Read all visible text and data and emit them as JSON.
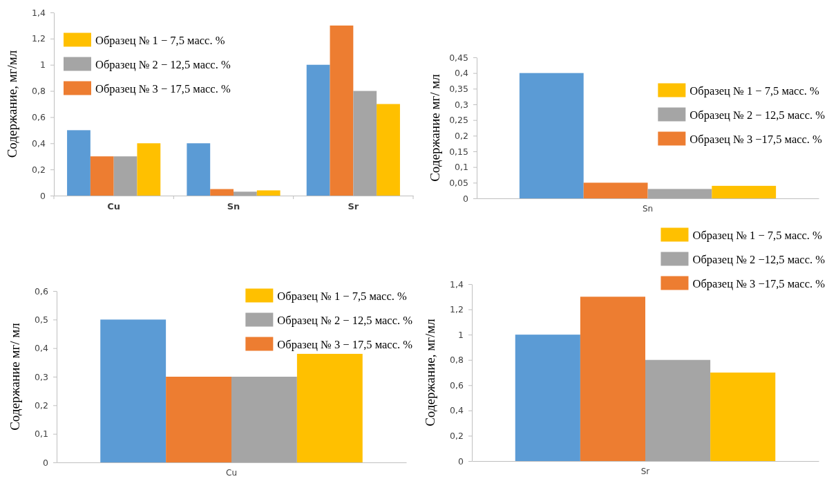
{
  "chart_data": [
    {
      "type": "bar",
      "ylabel": "Содержание, мг/мл",
      "categories": [
        "Cu",
        "Sn",
        "Sr"
      ],
      "ylim": [
        0,
        1.4
      ],
      "yticks": [
        {
          "value": 0,
          "label": "0"
        },
        {
          "value": 0.2,
          "label": "0,2"
        },
        {
          "value": 0.4,
          "label": "0,4"
        },
        {
          "value": 0.6,
          "label": "0,6"
        },
        {
          "value": 0.8,
          "label": "0,8"
        },
        {
          "value": 1,
          "label": "1"
        },
        {
          "value": 1.2,
          "label": "1,2"
        },
        {
          "value": 1.4,
          "label": "1,4"
        }
      ],
      "legend": "top left",
      "series": [
        {
          "color": "#5b9bd5",
          "values": [
            0.5,
            0.4,
            1.0
          ]
        },
        {
          "name": "Образец № 3 − 17,5 масс. %",
          "color": "#ed7d31",
          "values": [
            0.3,
            0.05,
            1.3
          ]
        },
        {
          "name": "Образец № 2 − 12,5 масс. %",
          "color": "#a5a5a5",
          "values": [
            0.3,
            0.03,
            0.8
          ]
        },
        {
          "name": "Образец № 1 − 7,5 масс. %",
          "color": "#ffc000",
          "values": [
            0.4,
            0.04,
            0.7
          ]
        }
      ]
    },
    {
      "type": "bar",
      "ylabel": "Содержание мг/ мл",
      "categories": [
        "Sn"
      ],
      "ylim": [
        0,
        0.45
      ],
      "yticks": [
        {
          "value": 0,
          "label": "0"
        },
        {
          "value": 0.05,
          "label": "0,05"
        },
        {
          "value": 0.1,
          "label": "0,1"
        },
        {
          "value": 0.15,
          "label": "0,15"
        },
        {
          "value": 0.2,
          "label": "0,2"
        },
        {
          "value": 0.25,
          "label": "0,25"
        },
        {
          "value": 0.3,
          "label": "0,3"
        },
        {
          "value": 0.35,
          "label": "0,35"
        },
        {
          "value": 0.4,
          "label": "0,4"
        },
        {
          "value": 0.45,
          "label": "0,45"
        }
      ],
      "legend": "right",
      "series": [
        {
          "color": "#5b9bd5",
          "values": [
            0.4
          ]
        },
        {
          "name": "Образец № 3 −17,5 масс. %",
          "color": "#ed7d31",
          "values": [
            0.05
          ]
        },
        {
          "name": "Образец № 2 − 12,5 масс. %",
          "color": "#a5a5a5",
          "values": [
            0.03
          ]
        },
        {
          "name": "Образец № 1 − 7,5 масс. %",
          "color": "#ffc000",
          "values": [
            0.04
          ]
        }
      ]
    },
    {
      "type": "bar",
      "ylabel": "Содержание мг/ мл",
      "categories": [
        "Cu"
      ],
      "ylim": [
        0,
        0.6
      ],
      "yticks": [
        {
          "value": 0,
          "label": "0"
        },
        {
          "value": 0.1,
          "label": "0,1"
        },
        {
          "value": 0.2,
          "label": "0,2"
        },
        {
          "value": 0.3,
          "label": "0,3"
        },
        {
          "value": 0.4,
          "label": "0,4"
        },
        {
          "value": 0.5,
          "label": "0,5"
        },
        {
          "value": 0.6,
          "label": "0,6"
        }
      ],
      "legend": "top right",
      "series": [
        {
          "color": "#5b9bd5",
          "values": [
            0.5
          ]
        },
        {
          "name": "Образец № 3 − 17,5 масс. %",
          "color": "#ed7d31",
          "values": [
            0.3
          ]
        },
        {
          "name": "Образец № 2 − 12,5 масс. %",
          "color": "#a5a5a5",
          "values": [
            0.3
          ]
        },
        {
          "name": "Образец № 1 − 7,5 масс. %",
          "color": "#ffc000",
          "values": [
            0.38
          ]
        }
      ]
    },
    {
      "type": "bar",
      "ylabel": "Содержание, мг/мл",
      "categories": [
        "Sr"
      ],
      "ylim": [
        0,
        1.4
      ],
      "yticks": [
        {
          "value": 0,
          "label": "0"
        },
        {
          "value": 0.2,
          "label": "0,2"
        },
        {
          "value": 0.4,
          "label": "0,4"
        },
        {
          "value": 0.6,
          "label": "0,6"
        },
        {
          "value": 0.8,
          "label": "0,8"
        },
        {
          "value": 1,
          "label": "1"
        },
        {
          "value": 1.2,
          "label": "1,2"
        },
        {
          "value": 1.4,
          "label": "1,4"
        }
      ],
      "legend": "top",
      "series": [
        {
          "color": "#5b9bd5",
          "values": [
            1.0
          ]
        },
        {
          "name": "Образец № 3 −17,5 масс. %",
          "color": "#ed7d31",
          "values": [
            1.3
          ]
        },
        {
          "name": "Образец № 2 −12,5 масс. %",
          "color": "#a5a5a5",
          "values": [
            0.8
          ]
        },
        {
          "name": "Образец № 1 − 7,5 масс. %",
          "color": "#ffc000",
          "values": [
            0.7
          ]
        }
      ]
    }
  ]
}
